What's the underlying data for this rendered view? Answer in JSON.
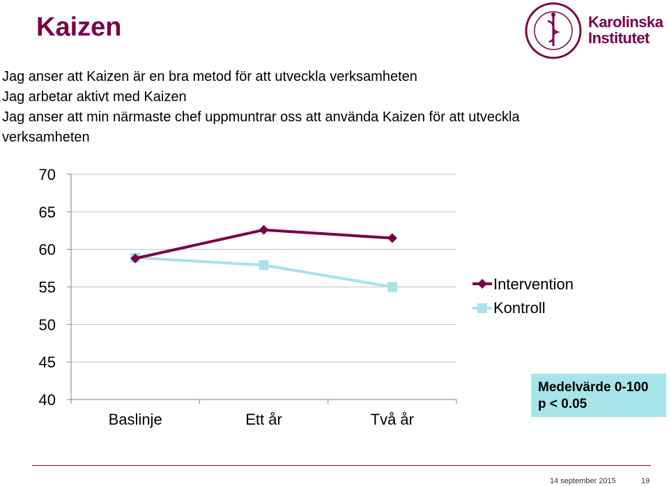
{
  "slide": {
    "title": "Kaizen",
    "statements": [
      "Jag anser att Kaizen är en bra metod för att utveckla verksamheten",
      "Jag arbetar aktivt med Kaizen",
      "Jag anser att min närmaste chef uppmuntrar oss att använda Kaizen för att utveckla verksamheten"
    ],
    "logo_text_line1": "Karolinska",
    "logo_text_line2": "Institutet",
    "logo_seal_text": "KAROLINSKA INSTITUTET ANNO 1810",
    "note_line1": "Medelvärde 0-100",
    "note_line2": "p < 0.05",
    "footer_date": "14 september 2015",
    "footer_page": "19"
  },
  "colors": {
    "brand": "#7a0048",
    "intervention": "#7a0048",
    "kontroll": "#a6e4e8",
    "gridline": "#c0c0c0"
  },
  "chart_data": {
    "type": "line",
    "title": "",
    "xlabel": "",
    "ylabel": "",
    "categories": [
      "Baslinje",
      "Ett år",
      "Två år"
    ],
    "ylim": [
      40,
      70
    ],
    "yticks": [
      40,
      45,
      50,
      55,
      60,
      65,
      70
    ],
    "grid": true,
    "legend_position": "right",
    "series": [
      {
        "name": "Intervention",
        "values": [
          58.8,
          62.6,
          61.5
        ],
        "marker": "diamond"
      },
      {
        "name": "Kontroll",
        "values": [
          58.9,
          57.9,
          55.0
        ],
        "marker": "square"
      }
    ]
  }
}
